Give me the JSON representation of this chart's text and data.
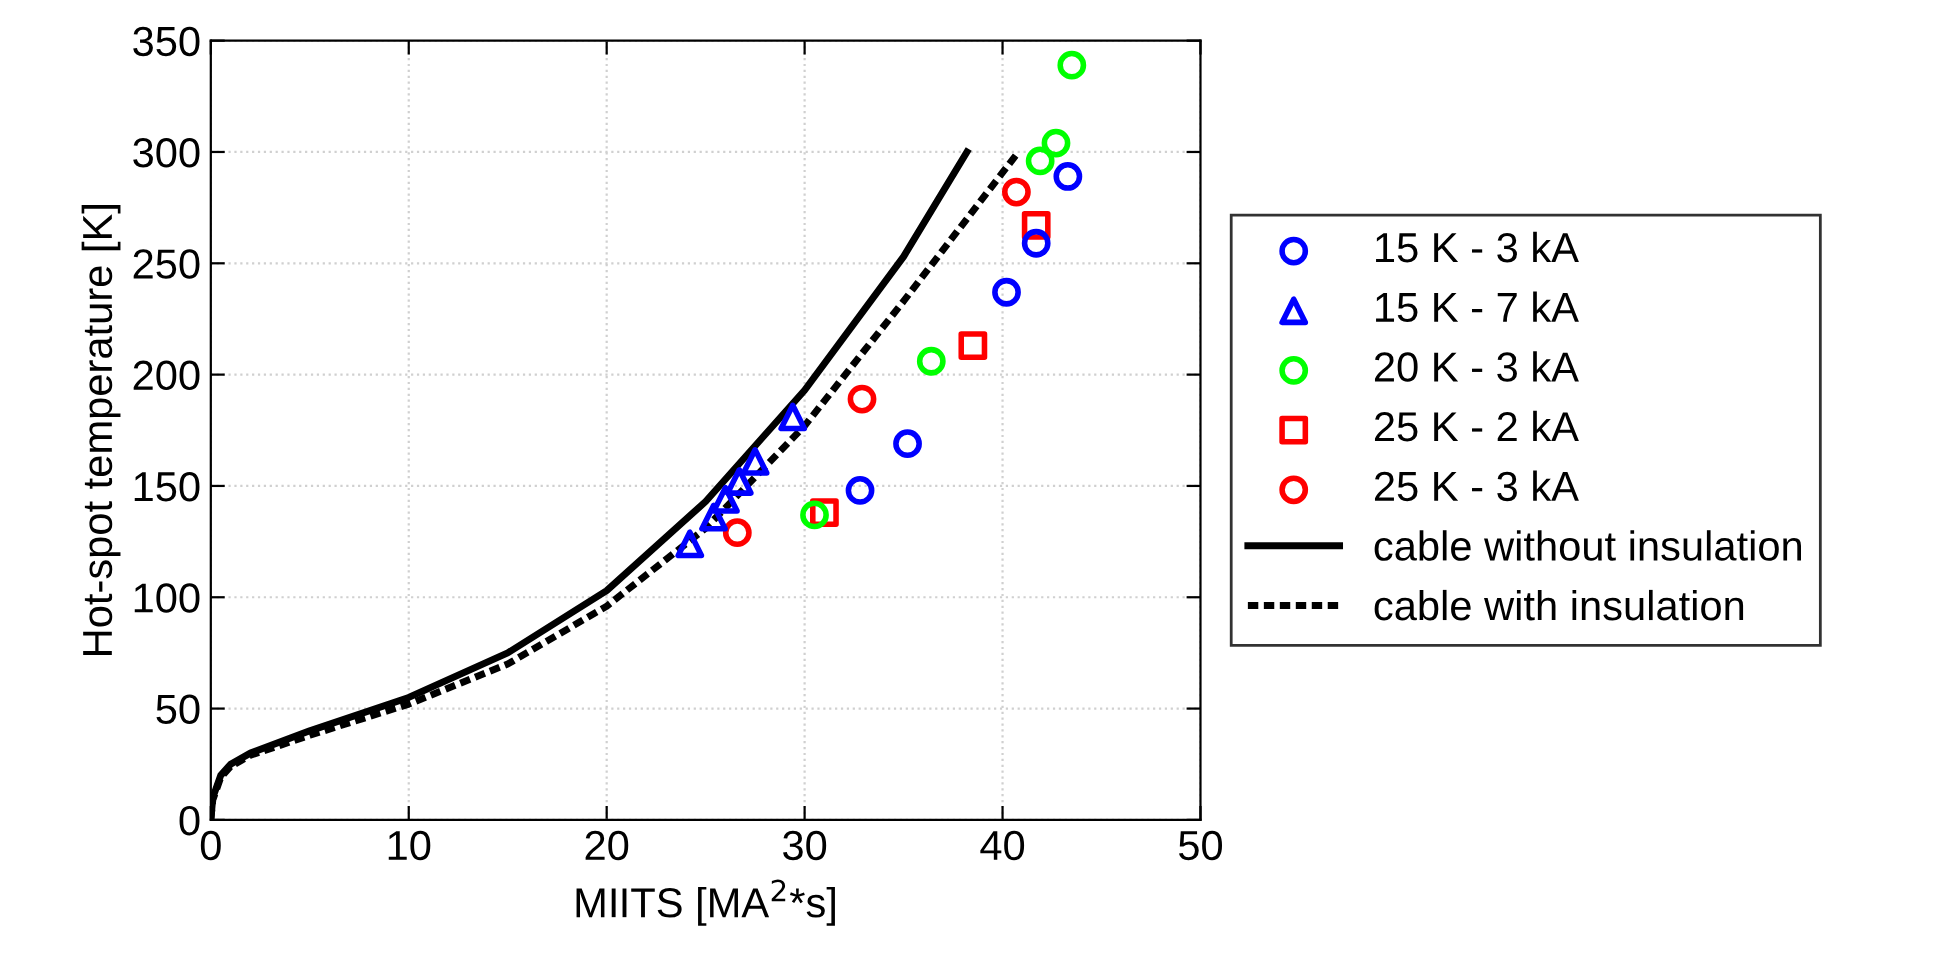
{
  "chart_data": {
    "type": "scatter",
    "xlabel": "MIITS [MA$^{2}$*s]",
    "ylabel": "Hot-spot temperature [K]",
    "xlim": [
      0,
      50
    ],
    "ylim": [
      0,
      350
    ],
    "xticks": [
      0,
      10,
      20,
      30,
      40,
      50
    ],
    "yticks": [
      0,
      50,
      100,
      150,
      200,
      250,
      300,
      350
    ],
    "grid": true,
    "legend": "right",
    "series": [
      {
        "name": "15 K - 3 kA",
        "color": "#0000ff",
        "marker": "circle",
        "x": [
          32.8,
          35.2,
          40.2,
          41.7,
          43.3
        ],
        "values": [
          148,
          169,
          237,
          259,
          289
        ]
      },
      {
        "name": "15 K - 7 kA",
        "color": "#0000ff",
        "marker": "triangle",
        "x": [
          24.2,
          25.4,
          26.0,
          26.7,
          27.5,
          29.4
        ],
        "values": [
          124,
          136,
          144,
          152,
          161,
          181
        ]
      },
      {
        "name": "20 K - 3 kA",
        "color": "#00ff00",
        "marker": "circle",
        "x": [
          30.5,
          36.4,
          41.9,
          42.7,
          43.5
        ],
        "values": [
          137,
          206,
          296,
          304,
          339
        ]
      },
      {
        "name": "25 K - 2 kA",
        "color": "#ff0000",
        "marker": "square",
        "x": [
          31.0,
          38.5,
          41.7
        ],
        "values": [
          138,
          213,
          267
        ]
      },
      {
        "name": "25 K - 3 kA",
        "color": "#ff0000",
        "marker": "circle",
        "x": [
          26.6,
          32.9,
          40.7
        ],
        "values": [
          129,
          189,
          282
        ]
      },
      {
        "name": "cable without insulation",
        "type": "line",
        "color": "#000000",
        "line_style": "solid",
        "marker": "none",
        "x": [
          0,
          0.1,
          0.5,
          1,
          2,
          5,
          10,
          15,
          20,
          25,
          30,
          35,
          38.2
        ],
        "values": [
          0,
          10,
          20,
          25,
          30,
          40,
          55,
          75,
          103,
          143,
          193,
          253,
          300
        ]
      },
      {
        "name": "cable with insulation",
        "type": "line",
        "color": "#000000",
        "line_style": "dotted",
        "marker": "none",
        "x": [
          0,
          0.1,
          0.5,
          1,
          2,
          5,
          10,
          15,
          20,
          25,
          30,
          35,
          40.8
        ],
        "values": [
          0,
          9,
          19,
          24,
          29,
          38,
          52,
          70,
          96,
          131,
          177,
          233,
          300
        ]
      }
    ]
  }
}
